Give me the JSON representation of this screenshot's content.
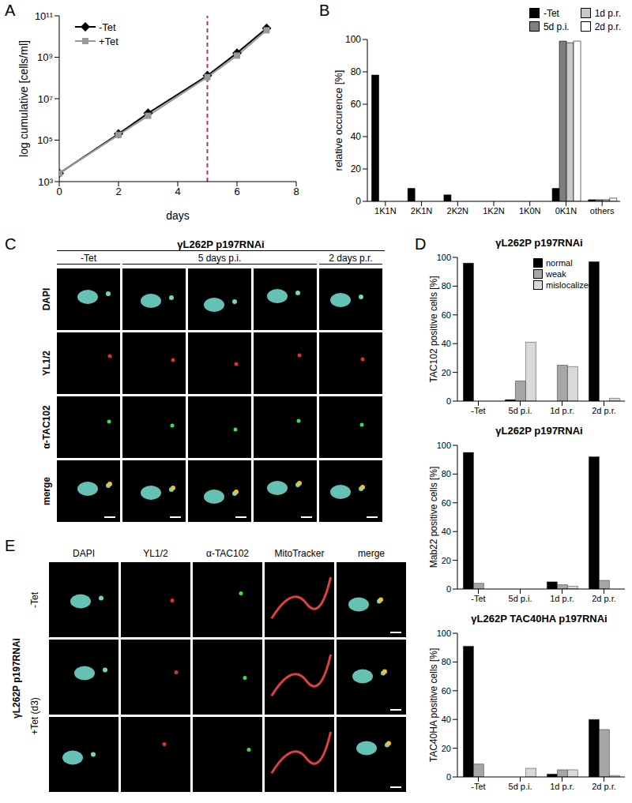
{
  "chart_data": [
    {
      "panel": "A",
      "type": "line",
      "x_label": "days",
      "y_label": "log cumulative [cells/ml]",
      "x": [
        0,
        2,
        3,
        5,
        6,
        7
      ],
      "series": [
        {
          "name": "-Tet",
          "color": "#000000",
          "marker": "diamond",
          "values": [
            2500,
            200000,
            2000000,
            130000000,
            1600000000,
            25000000000
          ]
        },
        {
          "name": "+Tet",
          "color": "#999999",
          "marker": "square",
          "values": [
            2500,
            180000,
            1500000,
            110000000,
            1200000000,
            20000000000
          ]
        }
      ],
      "xlim": [
        0,
        8
      ],
      "xticks": [
        0,
        2,
        4,
        6,
        8
      ],
      "ylim": [
        1000,
        100000000000
      ],
      "yticks": [
        {
          "value": 1000,
          "label": "10³"
        },
        {
          "value": 100000,
          "label": "10⁵"
        },
        {
          "value": 10000000,
          "label": "10⁷"
        },
        {
          "value": 1000000000,
          "label": "10⁹"
        },
        {
          "value": 100000000000,
          "label": "10¹¹"
        }
      ],
      "log": "y",
      "legend": "upper left",
      "reference_x": 5
    },
    {
      "panel": "B",
      "type": "bar",
      "y_label": "relative occurence [%]",
      "categories": [
        "1K1N",
        "2K1N",
        "2K2N",
        "1K2N",
        "1K0N",
        "0K1N",
        "others"
      ],
      "series": [
        {
          "name": "-Tet",
          "color": "#000000",
          "values": [
            78,
            8,
            4,
            0,
            0,
            8,
            1
          ]
        },
        {
          "name": "5d p.i.",
          "color": "#7f7f7f",
          "values": [
            0,
            0,
            0,
            0,
            0,
            99,
            1
          ]
        },
        {
          "name": "1d p.r.",
          "color": "#c8c8c8",
          "values": [
            0,
            0,
            0,
            0,
            0,
            98,
            1
          ]
        },
        {
          "name": "2d p.r.",
          "color": "#ffffff",
          "values": [
            0,
            0,
            0,
            0,
            0,
            99,
            2
          ]
        }
      ],
      "ylim": [
        0,
        100
      ],
      "yticks": [
        0,
        20,
        40,
        60,
        80,
        100
      ],
      "legend": "upper right"
    },
    {
      "panel": "D",
      "type": "bar",
      "title": "γL262P p197RNAi",
      "y_label": "TAC102 positive cells [%]",
      "categories": [
        "-Tet",
        "5d p.i.",
        "1d p.r.",
        "2d p.r."
      ],
      "series": [
        {
          "name": "normal",
          "color": "#000000",
          "values": [
            96,
            1,
            0,
            97
          ]
        },
        {
          "name": "weak",
          "color": "#a6a6a6",
          "values": [
            0,
            14,
            25,
            0
          ]
        },
        {
          "name": "mislocalized",
          "color": "#d9d9d9",
          "values": [
            0,
            41,
            24,
            2
          ]
        }
      ],
      "ylim": [
        0,
        100
      ],
      "yticks": [
        0,
        20,
        40,
        60,
        80,
        100
      ],
      "legend": "upper right"
    },
    {
      "type": "bar",
      "title": "γL262P p197RNAi",
      "y_label": "Mab22 positive cells [%]",
      "categories": [
        "-Tet",
        "5d p.i.",
        "1d p.r.",
        "2d p.r."
      ],
      "series": [
        {
          "name": "normal",
          "color": "#000000",
          "values": [
            95,
            0,
            5,
            92
          ]
        },
        {
          "name": "weak",
          "color": "#a6a6a6",
          "values": [
            4,
            0,
            3,
            6
          ]
        },
        {
          "name": "mislocalized",
          "color": "#d9d9d9",
          "values": [
            0,
            0,
            2,
            0
          ]
        }
      ],
      "ylim": [
        0,
        100
      ],
      "yticks": [
        0,
        20,
        40,
        60,
        80,
        100
      ]
    },
    {
      "type": "bar",
      "title": "γL262P TAC40HA p197RNAi",
      "y_label": "TAC40HA positive cells [%]",
      "categories": [
        "-Tet",
        "5d p.i.",
        "1d p.r.",
        "2d p.r."
      ],
      "series": [
        {
          "name": "normal",
          "color": "#000000",
          "values": [
            91,
            0,
            2,
            40
          ]
        },
        {
          "name": "weak",
          "color": "#a6a6a6",
          "values": [
            9,
            0,
            5,
            33
          ]
        },
        {
          "name": "mislocalized",
          "color": "#d9d9d9",
          "values": [
            0,
            6,
            5,
            1
          ]
        }
      ],
      "ylim": [
        0,
        100
      ],
      "yticks": [
        0,
        20,
        40,
        60,
        80,
        100
      ]
    }
  ],
  "image_panels": [
    {
      "panel": "C",
      "title": "γL262P p197RNAi",
      "columns": [
        {
          "label": "-Tet",
          "span": 1
        },
        {
          "label": "5 days p.i.",
          "span": 3
        },
        {
          "label": "2 days p.r.",
          "span": 1
        }
      ],
      "rows": [
        "DAPI",
        "YL1/2",
        "α-TAC102",
        "merge"
      ]
    },
    {
      "panel": "E",
      "side_label": "γL262P p197RNAi",
      "columns": [
        "DAPI",
        "YL1/2",
        "α-TAC102",
        "MitoTracker",
        "merge"
      ],
      "rows": [
        {
          "label": "-Tet",
          "span": 1
        },
        {
          "label": "+Tet (d3)",
          "span": 2
        }
      ]
    }
  ]
}
